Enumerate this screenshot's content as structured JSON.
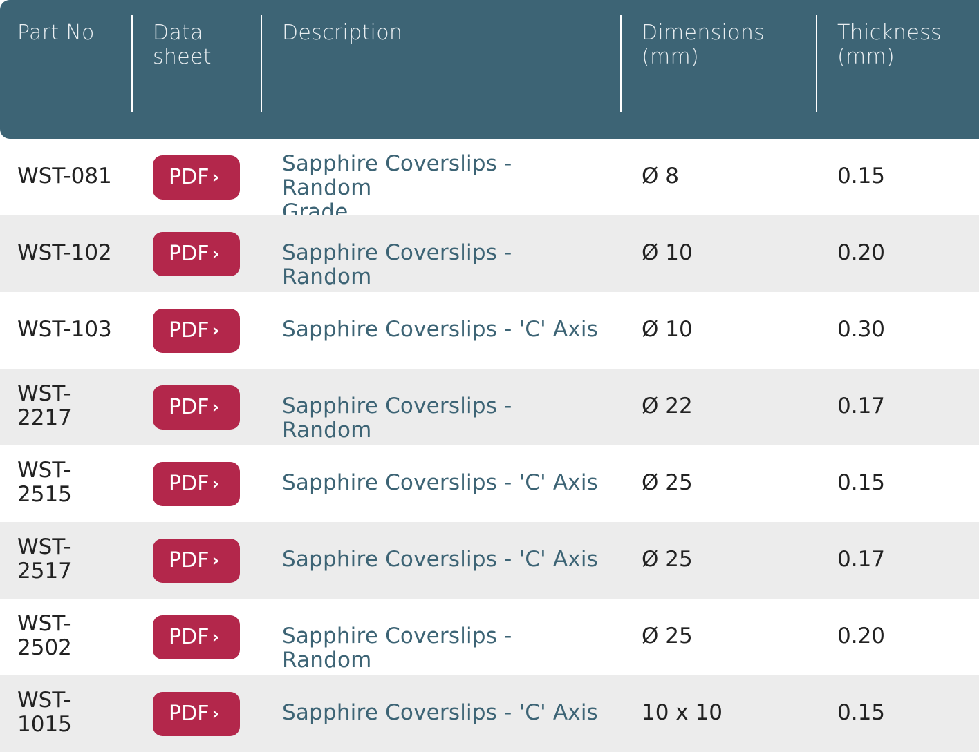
{
  "header": {
    "part_no": "Part No",
    "data_sheet_1": "Data",
    "data_sheet_2": "sheet",
    "description": "Description",
    "dimensions_1": "Dimensions",
    "dimensions_2": "(mm)",
    "thickness_1": "Thickness",
    "thickness_2": "(mm)"
  },
  "pdf_label": "PDF",
  "chevron": "›",
  "rows": [
    {
      "part_1": "WST-081",
      "part_2": "",
      "desc_1": "Sapphire Coverslips - Random",
      "desc_2": "Grade",
      "dim": "Ø 8",
      "thick": "0.15"
    },
    {
      "part_1": "WST-102",
      "part_2": "",
      "desc_1": "Sapphire Coverslips - Random",
      "desc_2": "",
      "dim": "Ø 10",
      "thick": "0.20"
    },
    {
      "part_1": "WST-103",
      "part_2": "",
      "desc_1": "Sapphire Coverslips - 'C' Axis",
      "desc_2": "",
      "dim": "Ø 10",
      "thick": "0.30"
    },
    {
      "part_1": "WST-",
      "part_2": "2217",
      "desc_1": "Sapphire Coverslips - Random",
      "desc_2": "",
      "dim": "Ø 22",
      "thick": "0.17"
    },
    {
      "part_1": "WST-",
      "part_2": "2515",
      "desc_1": "Sapphire Coverslips - 'C' Axis",
      "desc_2": "",
      "dim": "Ø 25",
      "thick": "0.15"
    },
    {
      "part_1": "WST-",
      "part_2": "2517",
      "desc_1": "Sapphire Coverslips - 'C' Axis",
      "desc_2": "",
      "dim": "Ø 25",
      "thick": "0.17"
    },
    {
      "part_1": "WST-",
      "part_2": "2502",
      "desc_1": "Sapphire Coverslips - Random",
      "desc_2": "",
      "dim": "Ø 25",
      "thick": "0.20"
    },
    {
      "part_1": "WST-",
      "part_2": "1015",
      "desc_1": "Sapphire Coverslips - 'C' Axis",
      "desc_2": "",
      "dim": "10 x 10",
      "thick": "0.15"
    }
  ]
}
